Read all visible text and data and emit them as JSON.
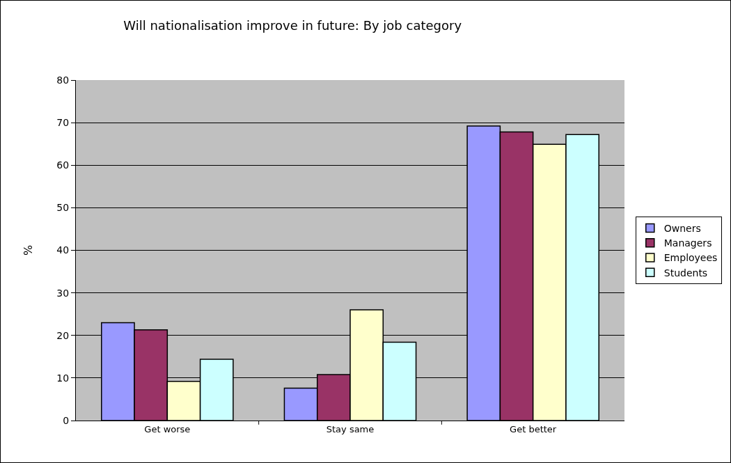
{
  "chart_data": {
    "type": "bar",
    "title": "Will nationalisation improve in future: By job category",
    "ylabel": "%",
    "categories": [
      "Get worse",
      "Stay same",
      "Get better"
    ],
    "series": [
      {
        "name": "Owners",
        "color": "#9999ff",
        "values": [
          23.0,
          7.6,
          69.2
        ]
      },
      {
        "name": "Managers",
        "color": "#993366",
        "values": [
          21.3,
          10.8,
          67.8
        ]
      },
      {
        "name": "Employees",
        "color": "#ffffcc",
        "values": [
          9.2,
          26.0,
          64.9
        ]
      },
      {
        "name": "Students",
        "color": "#ccffff",
        "values": [
          14.4,
          18.4,
          67.2
        ]
      }
    ],
    "ylim": [
      0,
      80
    ],
    "yticks": [
      0,
      10,
      20,
      30,
      40,
      50,
      60,
      70,
      80
    ],
    "grid": "y",
    "legend": "right"
  }
}
